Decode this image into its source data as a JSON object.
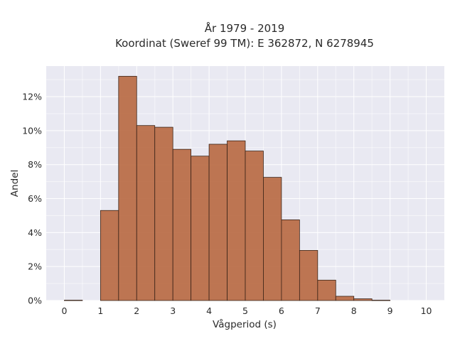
{
  "chart_data": {
    "type": "bar",
    "title_line1": "År 1979 - 2019",
    "title_line2": "Koordinat (Sweref 99 TM): E 362872, N 6278945",
    "xlabel": "Vågperiod (s)",
    "ylabel": "Andel",
    "x_ticks": [
      "0",
      "1",
      "2",
      "3",
      "4",
      "5",
      "6",
      "7",
      "8",
      "9",
      "10"
    ],
    "y_ticks": [
      "0%",
      "2%",
      "4%",
      "6%",
      "8%",
      "10%",
      "12%"
    ],
    "xlim": [
      -0.5,
      10.5
    ],
    "ylim": [
      0,
      13.8
    ],
    "bin_width": 0.5,
    "bins": [
      {
        "x0": 0.0,
        "value": 0.02
      },
      {
        "x0": 0.5,
        "value": 0.0
      },
      {
        "x0": 1.0,
        "value": 5.3
      },
      {
        "x0": 1.5,
        "value": 13.2
      },
      {
        "x0": 2.0,
        "value": 10.3
      },
      {
        "x0": 2.5,
        "value": 10.2
      },
      {
        "x0": 3.0,
        "value": 8.9
      },
      {
        "x0": 3.5,
        "value": 8.5
      },
      {
        "x0": 4.0,
        "value": 9.2
      },
      {
        "x0": 4.5,
        "value": 9.4
      },
      {
        "x0": 5.0,
        "value": 8.8
      },
      {
        "x0": 5.5,
        "value": 7.25
      },
      {
        "x0": 6.0,
        "value": 4.75
      },
      {
        "x0": 6.5,
        "value": 2.95
      },
      {
        "x0": 7.0,
        "value": 1.2
      },
      {
        "x0": 7.5,
        "value": 0.25
      },
      {
        "x0": 8.0,
        "value": 0.1
      },
      {
        "x0": 8.5,
        "value": 0.02
      },
      {
        "x0": 9.0,
        "value": 0.0
      },
      {
        "x0": 9.5,
        "value": 0.0
      }
    ],
    "grid": true,
    "colors": {
      "bar": "#b86a44",
      "bar_edge": "#3a2418",
      "plot_bg": "#e9e9f2",
      "grid": "#ffffff"
    }
  }
}
